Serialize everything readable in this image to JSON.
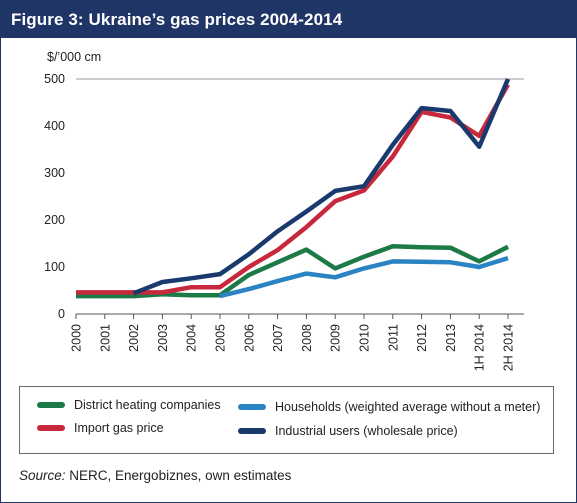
{
  "figure_title": "Figure 3: Ukraine’s gas prices 2004-2014",
  "source": {
    "prefix": "Source:",
    "text": " NERC, Energobiznes, own estimates"
  },
  "colors": {
    "header_bg": "#1f3566",
    "district_heating": "#1c7a47",
    "import_gas": "#c8283b",
    "households": "#2a84c4",
    "industrial": "#1a3a6e"
  },
  "chart_data": {
    "type": "line",
    "ylabel": "$/’000 cm",
    "ylim": [
      0,
      500
    ],
    "yticks": [
      0,
      100,
      200,
      300,
      400,
      500
    ],
    "categories": [
      "2000",
      "2001",
      "2002",
      "2003",
      "2004",
      "2005",
      "2006",
      "2007",
      "2008",
      "2009",
      "2010",
      "2011",
      "2012",
      "2013",
      "1H 2014",
      "2H 2014"
    ],
    "grid": false,
    "legend_position": "bottom",
    "series": [
      {
        "name": "District heating companies",
        "color_key": "district_heating",
        "values": [
          38,
          38,
          38,
          42,
          40,
          40,
          83,
          110,
          137,
          97,
          122,
          144,
          142,
          141,
          112,
          143
        ]
      },
      {
        "name": "Households (weighted average without a meter)",
        "color_key": "households",
        "values": [
          null,
          null,
          null,
          null,
          null,
          38,
          53,
          70,
          86,
          78,
          97,
          112,
          111,
          110,
          100,
          119
        ]
      },
      {
        "name": "Import gas price",
        "color_key": "import_gas",
        "values": [
          46,
          46,
          46,
          46,
          57,
          57,
          100,
          136,
          185,
          240,
          263,
          335,
          430,
          418,
          379,
          488
        ]
      },
      {
        "name": "Industrial users (wholesale price)",
        "color_key": "industrial",
        "values": [
          null,
          null,
          44,
          68,
          76,
          85,
          127,
          176,
          218,
          262,
          272,
          360,
          438,
          432,
          356,
          500
        ]
      }
    ]
  }
}
